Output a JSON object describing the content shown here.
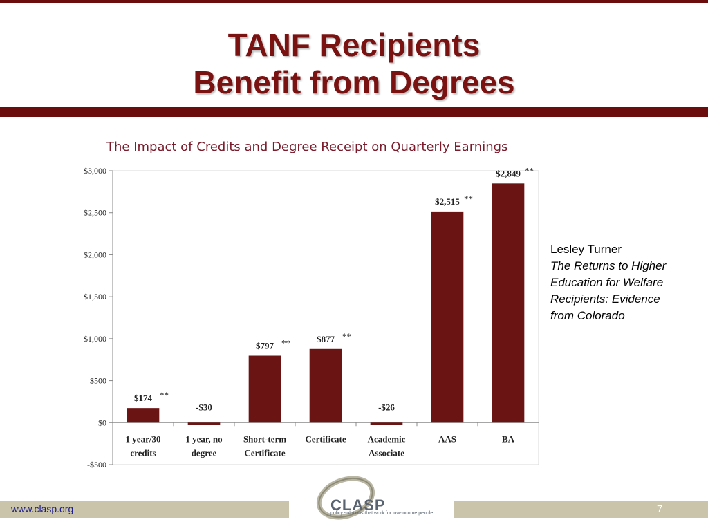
{
  "slide": {
    "title_line1": "TANF Recipients",
    "title_line2": "Benefit from Degrees"
  },
  "citation": {
    "author": "Lesley Turner",
    "work_lines": [
      "The Returns to Higher",
      "Education for Welfare",
      "Recipients: Evidence",
      "from Colorado"
    ]
  },
  "footer": {
    "url": "www.clasp.org",
    "page_number": "7"
  },
  "logo": {
    "name": "CLASP",
    "tagline": "policy solutions that work for low-income people"
  },
  "colors": {
    "bar": "#6b1414",
    "accent": "#6b0d0d",
    "footer_band": "#c9c4aa"
  },
  "chart_data": {
    "type": "bar",
    "title": "The Impact of Credits and Degree Receipt on Quarterly Earnings",
    "categories": [
      [
        "1 year/30",
        "credits"
      ],
      [
        "1 year, no",
        "degree"
      ],
      [
        "Short-term",
        "Certificate"
      ],
      [
        "Certificate"
      ],
      [
        "Academic",
        "Associate"
      ],
      [
        "AAS"
      ],
      [
        "BA"
      ]
    ],
    "values": [
      174,
      -30,
      797,
      877,
      -26,
      2515,
      2849
    ],
    "data_labels": [
      "$174",
      "-$30",
      "$797",
      "$877",
      "-$26",
      "$2,515",
      "$2,849"
    ],
    "significance": [
      "**",
      "",
      "**",
      "**",
      "",
      "**",
      "**"
    ],
    "ylim": [
      -500,
      3000
    ],
    "yticks": [
      -500,
      0,
      500,
      1000,
      1500,
      2000,
      2500,
      3000
    ],
    "ytick_labels": [
      "-$500",
      "$0",
      "$500",
      "$1,000",
      "$1,500",
      "$2,000",
      "$2,500",
      "$3,000"
    ],
    "xlabel": "",
    "ylabel": "",
    "grid": false
  }
}
